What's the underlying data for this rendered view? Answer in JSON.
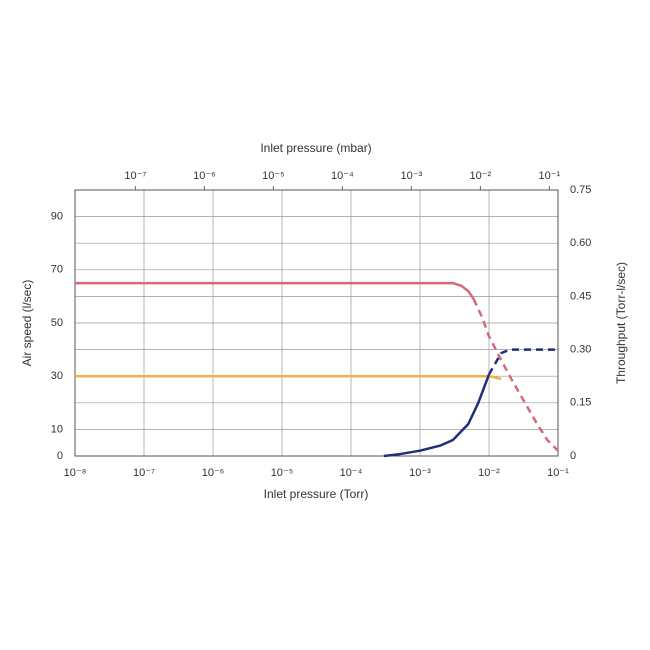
{
  "chart_data": {
    "type": "line",
    "x_title": "Inlet pressure (Torr)",
    "x2_title": "Inlet pressure (mbar)",
    "y_title": "Air speed (l/sec)",
    "y2_title": "Throughput (Torr-l/sec)",
    "xscale": "log",
    "xlim": [
      1e-08,
      0.1
    ],
    "xticks": [
      {
        "value": 1e-08,
        "label": "10⁻⁸"
      },
      {
        "value": 1e-07,
        "label": "10⁻⁷"
      },
      {
        "value": 1e-06,
        "label": "10⁻⁶"
      },
      {
        "value": 1e-05,
        "label": "10⁻⁵"
      },
      {
        "value": 0.0001,
        "label": "10⁻⁴"
      },
      {
        "value": 0.001,
        "label": "10⁻³"
      },
      {
        "value": 0.01,
        "label": "10⁻²"
      },
      {
        "value": 0.1,
        "label": "10⁻¹"
      }
    ],
    "x2lim": [
      1.333e-08,
      0.1333
    ],
    "x2ticks": [
      {
        "value": 1e-07,
        "label": "10⁻⁷"
      },
      {
        "value": 1e-06,
        "label": "10⁻⁶"
      },
      {
        "value": 1e-05,
        "label": "10⁻⁵"
      },
      {
        "value": 0.0001,
        "label": "10⁻⁴"
      },
      {
        "value": 0.001,
        "label": "10⁻³"
      },
      {
        "value": 0.01,
        "label": "10⁻²"
      },
      {
        "value": 0.1,
        "label": "10⁻¹"
      }
    ],
    "ylim": [
      0,
      100
    ],
    "yticks": [
      0,
      10,
      30,
      50,
      70,
      90
    ],
    "y2lim": [
      0,
      0.75
    ],
    "y2ticks": [
      0,
      0.15,
      {
        "value": 0.3,
        "label": "0.30"
      },
      0.45,
      {
        "value": 0.6,
        "label": "0.60"
      },
      0.75
    ],
    "grid": true,
    "series": [
      {
        "color": "#d9677a",
        "style": "solid",
        "axis": "y",
        "x": [
          1e-08,
          0.001,
          0.003,
          0.004,
          0.005,
          0.006
        ],
        "values": [
          65,
          65,
          65,
          64,
          62,
          59
        ]
      },
      {
        "color": "#d9677a",
        "style": "dashed",
        "axis": "y",
        "x": [
          0.006,
          0.008,
          0.01,
          0.015,
          0.02,
          0.03,
          0.05,
          0.07,
          0.1
        ],
        "values": [
          59,
          52,
          45,
          36,
          30,
          22,
          12,
          6,
          2
        ]
      },
      {
        "color": "#f5b04a",
        "style": "solid",
        "axis": "y",
        "x": [
          1e-08,
          0.01,
          0.015
        ],
        "values": [
          30,
          30,
          29
        ]
      },
      {
        "color": "#1f2f7a",
        "style": "solid",
        "axis": "y2",
        "x": [
          0.0003,
          0.0005,
          0.001,
          0.002,
          0.003,
          0.005,
          0.007,
          0.01
        ],
        "values": [
          0,
          0.005,
          0.015,
          0.03,
          0.045,
          0.09,
          0.15,
          0.23
        ]
      },
      {
        "color": "#1f2f7a",
        "style": "dashed",
        "axis": "y2",
        "x": [
          0.01,
          0.015,
          0.02,
          0.03,
          0.1
        ],
        "values": [
          0.23,
          0.29,
          0.3,
          0.3,
          0.3
        ]
      }
    ]
  }
}
